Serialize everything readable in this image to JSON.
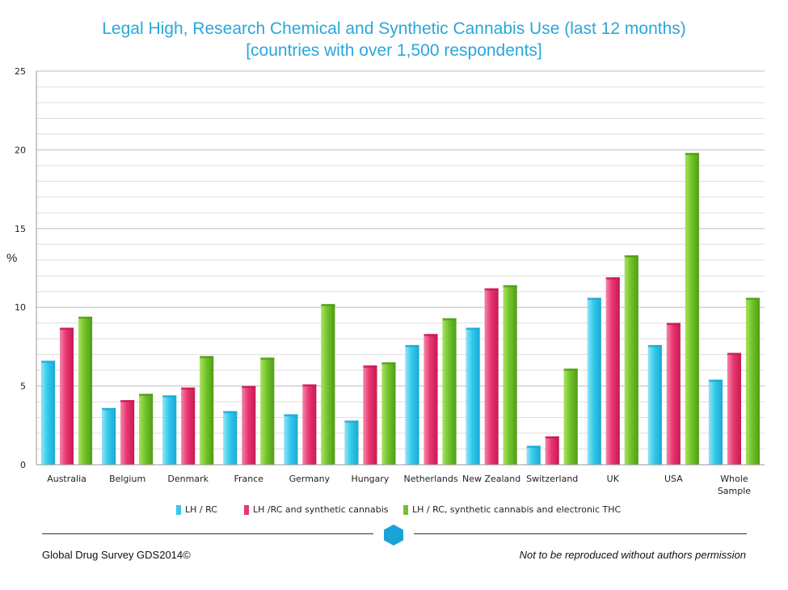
{
  "chart_data": {
    "type": "bar",
    "title": "Legal High, Research Chemical and Synthetic Cannabis Use (last 12 months)",
    "subtitle": "[countries with over 1,500 respondents]",
    "ylabel": "%",
    "xlabel": "",
    "ylim": [
      0,
      25
    ],
    "yticks": [
      0,
      5,
      10,
      15,
      20,
      25
    ],
    "grid": true,
    "legend_position": "bottom",
    "categories": [
      "Australia",
      "Belgium",
      "Denmark",
      "France",
      "Germany",
      "Hungary",
      "Netherlands",
      "New Zealand",
      "Switzerland",
      "UK",
      "USA",
      "Whole Sample"
    ],
    "series": [
      {
        "name": "LH / RC",
        "color": "#33c9ea",
        "values": [
          6.6,
          3.6,
          4.4,
          3.4,
          3.2,
          2.8,
          7.6,
          8.7,
          1.2,
          10.6,
          7.6,
          5.4
        ]
      },
      {
        "name": "LH /RC and synthetic cannabis",
        "color": "#e8366f",
        "values": [
          8.7,
          4.1,
          4.9,
          5.0,
          5.1,
          6.3,
          8.3,
          11.2,
          1.8,
          11.9,
          9.0,
          7.1
        ]
      },
      {
        "name": "LH / RC, synthetic cannabis and electronic THC",
        "color": "#72c22d",
        "values": [
          9.4,
          4.5,
          6.9,
          6.8,
          10.2,
          6.5,
          9.3,
          11.4,
          6.1,
          13.3,
          19.8,
          10.6
        ]
      }
    ]
  },
  "footer": {
    "left": "Global Drug Survey GDS2014©",
    "right": "Not to be reproduced without authors permission",
    "logo_icon": "hexagon-icon"
  }
}
